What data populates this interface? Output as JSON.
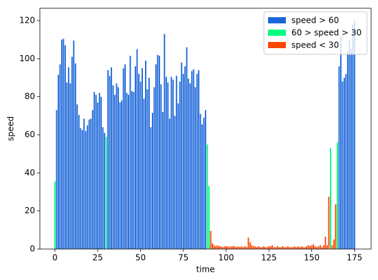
{
  "chart_data": {
    "type": "bar",
    "xlabel": "time",
    "ylabel": "speed",
    "xlim": [
      -8.8,
      184.7
    ],
    "ylim": [
      0,
      126.5
    ],
    "xticks": [
      0,
      25,
      50,
      75,
      100,
      125,
      150,
      175
    ],
    "yticks": [
      0,
      20,
      40,
      60,
      80,
      100,
      120
    ],
    "legend": "upper right",
    "series": [
      {
        "name": "speed > 60",
        "color": "#1a66d9",
        "x": [
          1,
          2,
          3,
          4,
          5,
          6,
          7,
          8,
          9,
          10,
          11,
          12,
          13,
          14,
          15,
          16,
          17,
          18,
          19,
          20,
          21,
          22,
          23,
          24,
          25,
          26,
          27,
          28,
          29,
          31,
          32,
          33,
          34,
          35,
          36,
          37,
          38,
          39,
          40,
          41,
          42,
          43,
          44,
          45,
          46,
          47,
          48,
          49,
          50,
          51,
          52,
          53,
          54,
          55,
          56,
          57,
          58,
          59,
          60,
          61,
          62,
          63,
          64,
          65,
          66,
          67,
          68,
          69,
          70,
          71,
          72,
          73,
          74,
          75,
          76,
          77,
          78,
          79,
          80,
          81,
          82,
          83,
          84,
          85,
          86,
          87,
          88,
          166,
          167,
          168,
          169,
          170,
          171,
          172,
          173,
          174,
          175
        ],
        "values": [
          73,
          91.5,
          97,
          110,
          110.5,
          107,
          87.5,
          95.5,
          87,
          101,
          109.5,
          97.5,
          76,
          70.5,
          63.5,
          62.5,
          68.5,
          62,
          65,
          68,
          68.5,
          73,
          82.5,
          81,
          77,
          82,
          80,
          64,
          61,
          94,
          91,
          95.5,
          86,
          81,
          87,
          85,
          77,
          78,
          95,
          97,
          82,
          81,
          101.5,
          83,
          82.5,
          96,
          105,
          92,
          88,
          95,
          79,
          99,
          84,
          90,
          64,
          71.5,
          85,
          97,
          102,
          101.5,
          86.5,
          72,
          113,
          90.5,
          87.5,
          68.5,
          90.5,
          89,
          70,
          91,
          76.5,
          88,
          98,
          92,
          96,
          106,
          89.5,
          87,
          93.5,
          94.5,
          85,
          92,
          94,
          71,
          65.5,
          69,
          73,
          96,
          112,
          88,
          90,
          92,
          104,
          110,
          105,
          118,
          120
        ]
      },
      {
        "name": "60 > speed > 30",
        "color": "#00ff7f",
        "x": [
          0,
          30,
          89,
          90,
          161,
          165
        ],
        "values": [
          35.5,
          59,
          55,
          33,
          53,
          56
        ]
      },
      {
        "name": "speed < 30",
        "color": "#ff4500",
        "x": [
          91,
          92,
          93,
          94,
          95,
          96,
          97,
          98,
          99,
          100,
          101,
          102,
          103,
          104,
          105,
          106,
          107,
          108,
          109,
          110,
          111,
          112,
          113,
          114,
          115,
          116,
          117,
          118,
          119,
          120,
          121,
          122,
          123,
          124,
          125,
          126,
          127,
          128,
          129,
          130,
          131,
          132,
          133,
          134,
          135,
          136,
          137,
          138,
          139,
          140,
          141,
          142,
          143,
          144,
          145,
          146,
          147,
          148,
          149,
          150,
          151,
          152,
          153,
          154,
          155,
          156,
          157,
          158,
          159,
          160,
          162,
          163,
          164
        ],
        "values": [
          9.5,
          3,
          2,
          1.5,
          2,
          1.5,
          1.5,
          1,
          1.5,
          1.5,
          1.5,
          1,
          1.5,
          1.5,
          1.5,
          1,
          1.5,
          1,
          1.5,
          1,
          1.5,
          1,
          6,
          3.5,
          2,
          1.5,
          1.5,
          1,
          1.5,
          1,
          1,
          1.5,
          1,
          1,
          1.5,
          1.5,
          2,
          1,
          1,
          1.5,
          1,
          1,
          1.5,
          1,
          1,
          1.5,
          1,
          1,
          1,
          1.5,
          1,
          1.5,
          1,
          1.5,
          1,
          1,
          1.5,
          2,
          1.5,
          2,
          2.5,
          1.5,
          1,
          1.5,
          2,
          1,
          2,
          6.5,
          2,
          27.5,
          2,
          5,
          23.5
        ]
      }
    ]
  }
}
